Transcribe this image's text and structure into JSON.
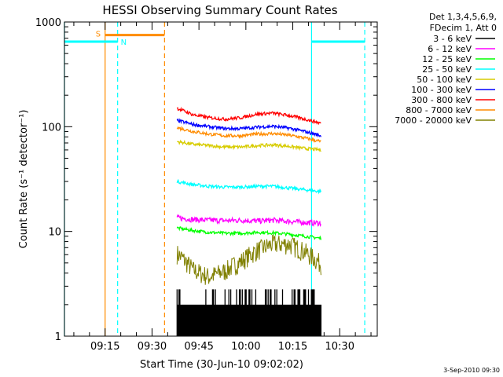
{
  "chart_data": {
    "type": "line",
    "title": "HESSI Observing Summary Count Rates",
    "xlabel": "Start Time (30-Jun-10 09:02:02)",
    "ylabel": "Count Rate (s⁻¹ detector⁻¹)",
    "yscale": "log",
    "ylim": [
      1,
      1000
    ],
    "xlim": [
      "09:02",
      "10:42"
    ],
    "x_ticks": [
      "09:15",
      "09:30",
      "09:45",
      "10:00",
      "10:15",
      "10:30"
    ],
    "y_ticks": [
      "1",
      "10",
      "100",
      "1000"
    ],
    "legend_header": [
      "Det 1,3,4,5,6,9,",
      "FDecim 1, Att 0"
    ],
    "legend_position": "right-outside",
    "date_stamp": "3-Sep-2010 09:30",
    "data_window": {
      "start": "09:38",
      "end": "10:24"
    },
    "series": [
      {
        "name": "3 - 6 keV",
        "color": "#000000",
        "min": 1,
        "max": 2.8
      },
      {
        "name": "6 - 12 keV",
        "color": "#ff00ff",
        "values": [
          13.5,
          13,
          12.8,
          12.7,
          12.8,
          12.6,
          12.8,
          12.5,
          12.2,
          12
        ]
      },
      {
        "name": "12 - 25 keV",
        "color": "#00ff00",
        "values": [
          10.8,
          10.2,
          9.8,
          9.6,
          9.6,
          9.8,
          9.7,
          9.4,
          9.0,
          8.6
        ]
      },
      {
        "name": "25 - 50 keV",
        "color": "#00ffff",
        "values": [
          30,
          28,
          27,
          26.5,
          26.5,
          27,
          27,
          26,
          25,
          24
        ]
      },
      {
        "name": "50 - 100 keV",
        "color": "#d7cc00",
        "values": [
          72,
          68,
          66,
          64,
          64,
          66,
          67,
          65,
          62,
          60
        ]
      },
      {
        "name": "100 - 300 keV",
        "color": "#0000ff",
        "values": [
          115,
          105,
          100,
          96,
          96,
          99,
          101,
          97,
          90,
          82
        ]
      },
      {
        "name": "300 - 800 keV",
        "color": "#ff0000",
        "values": [
          150,
          130,
          122,
          118,
          122,
          132,
          135,
          128,
          118,
          108
        ]
      },
      {
        "name": "800 - 7000 keV",
        "color": "#ff8c00",
        "values": [
          98,
          90,
          85,
          82,
          82,
          85,
          86,
          83,
          78,
          72
        ]
      },
      {
        "name": "7000 - 20000 keV",
        "color": "#808000",
        "values": [
          6.2,
          4.3,
          3.7,
          4.2,
          5.2,
          6.6,
          7.6,
          7.6,
          6.4,
          4.9
        ]
      }
    ],
    "vlines": [
      {
        "time": "09:15",
        "color": "#ff8c00",
        "style": "solid"
      },
      {
        "time": "09:19",
        "color": "#00ffff",
        "style": "dashed"
      },
      {
        "time": "09:34",
        "color": "#ff8c00",
        "style": "dashed"
      },
      {
        "time": "10:21",
        "color": "#00ffff",
        "style": "solid"
      },
      {
        "time": "10:38",
        "color": "#00ffff",
        "style": "dashed"
      },
      {
        "time": "09:02",
        "color": "#00ffff",
        "style": "solid"
      }
    ],
    "flags": [
      {
        "label": "S",
        "color": "#ff8c00",
        "start": "09:15",
        "end": "09:34",
        "level": 750
      },
      {
        "label": "N",
        "color": "#00ffff",
        "start": "09:02",
        "end": "09:19",
        "level": 650
      },
      {
        "label": "",
        "color": "#00ffff",
        "start": "10:21",
        "end": "10:38",
        "level": 650
      }
    ]
  }
}
